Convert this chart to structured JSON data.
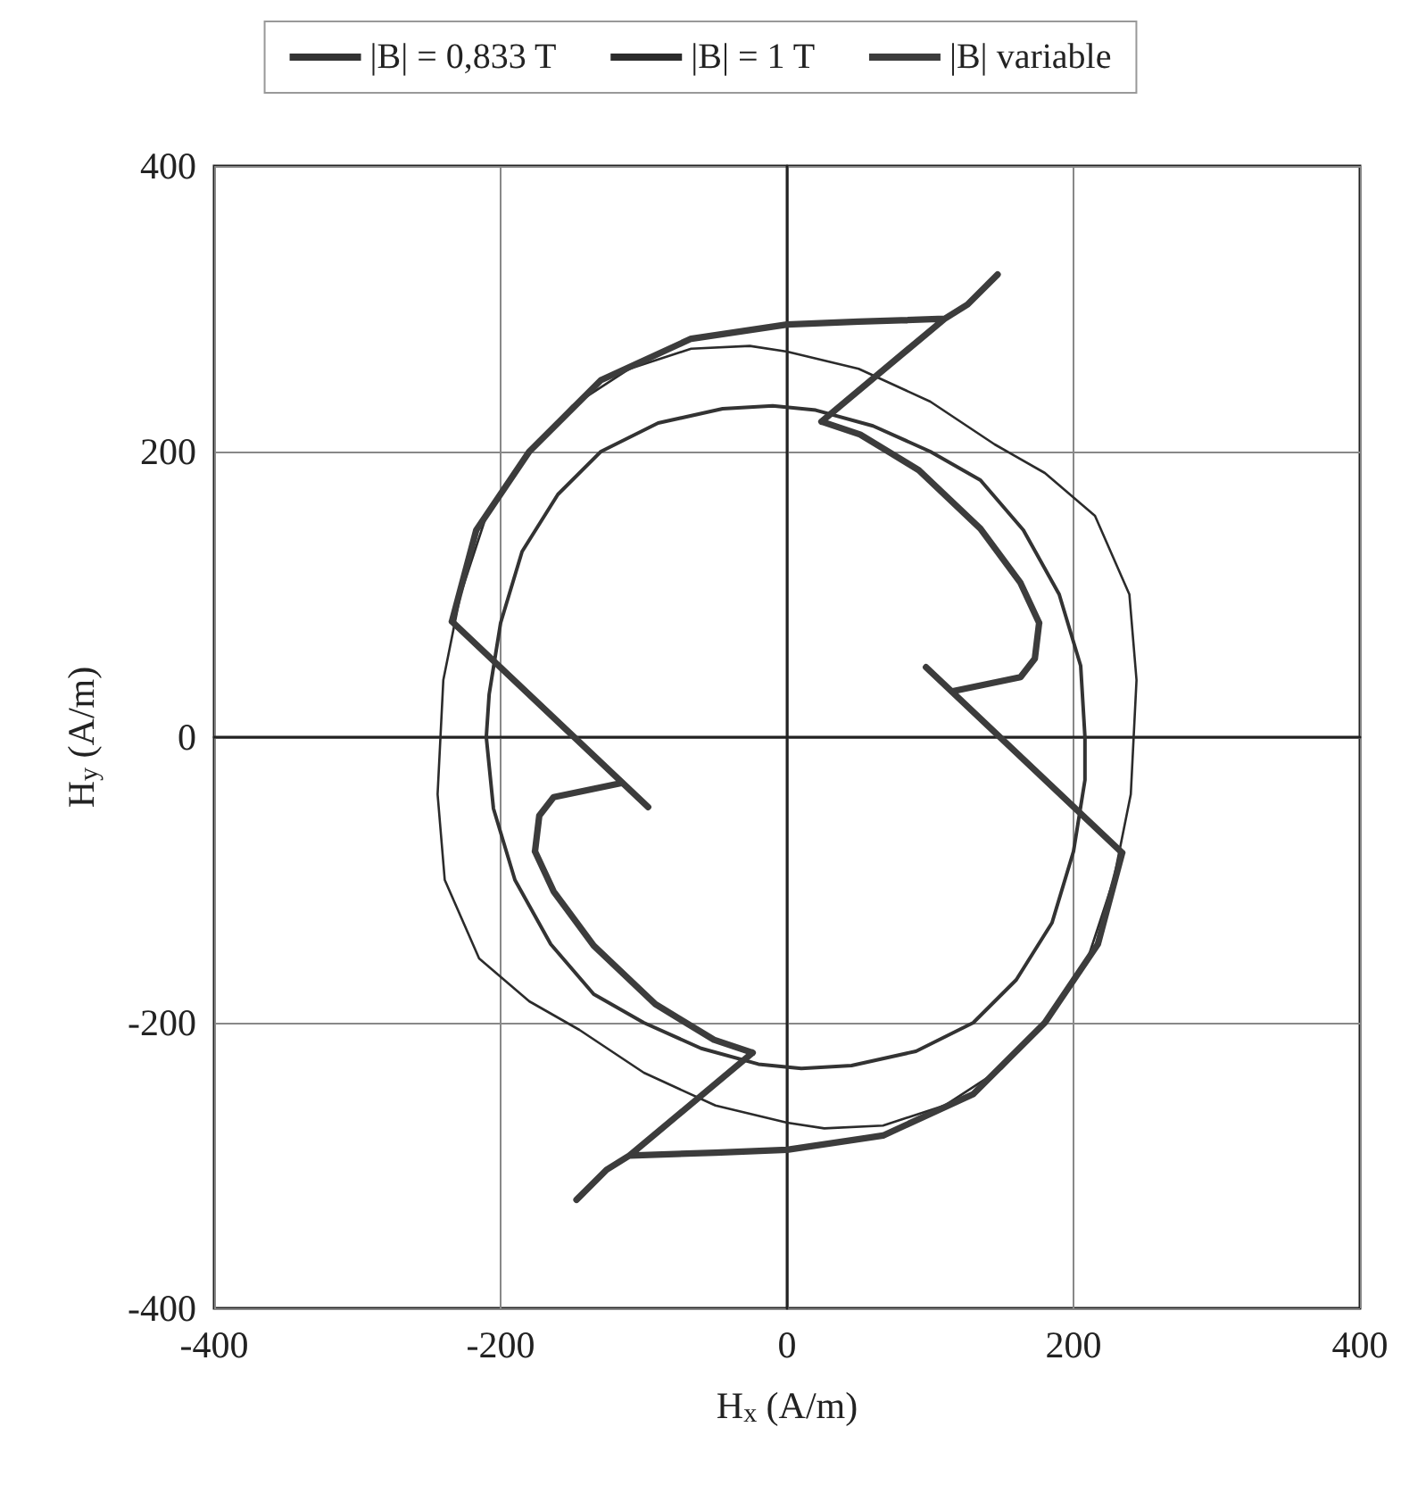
{
  "chart_data": {
    "type": "line",
    "xlabel": "H$_{x}$ (A/m)",
    "ylabel": "H$_{y}$ (A/m)",
    "xlim": [
      -400,
      400
    ],
    "xticks": [
      -400,
      -200,
      0,
      200,
      400
    ],
    "ylim": [
      -400,
      400
    ],
    "yticks": [
      -400,
      -200,
      0,
      200,
      400
    ],
    "grid": true,
    "legend": "top",
    "marker": "none",
    "line_style": "solid",
    "series": [
      {
        "name": "|B| = 0,833 T",
        "color": "#333333",
        "x": [
          208,
          205,
          190,
          165,
          135,
          100,
          60,
          20,
          -10,
          -45,
          -90,
          -130,
          -160,
          -185,
          -200,
          -208,
          -210,
          null,
          -210,
          -205,
          -190,
          -165,
          -135,
          -100,
          -60,
          -20,
          10,
          45,
          90,
          130,
          160,
          185,
          200,
          208,
          208
        ],
        "values": [
          0,
          50,
          100,
          145,
          180,
          200,
          218,
          229,
          232,
          230,
          220,
          200,
          170,
          130,
          80,
          30,
          0,
          null,
          0,
          -50,
          -100,
          -145,
          -180,
          -200,
          -218,
          -229,
          -232,
          -230,
          -220,
          -200,
          -170,
          -130,
          -80,
          -30,
          0
        ]
      },
      {
        "name": "|B| = 1 T",
        "color": "#2b2b2b",
        "x": [
          244,
          239,
          215,
          180,
          145,
          100,
          50,
          0,
          -26,
          -67,
          -110,
          -150,
          -180,
          -210,
          -228,
          -240,
          -244,
          null,
          -244,
          -239,
          -215,
          -180,
          -145,
          -100,
          -50,
          0,
          26,
          67,
          110,
          150,
          180,
          210,
          228,
          240,
          244
        ],
        "values": [
          40,
          100,
          155,
          185,
          205,
          235,
          258,
          270,
          274,
          272,
          258,
          232,
          200,
          155,
          100,
          40,
          -40,
          null,
          -40,
          -100,
          -155,
          -185,
          -205,
          -235,
          -258,
          -270,
          -274,
          -272,
          -258,
          -232,
          -200,
          -155,
          -100,
          -40,
          40
        ]
      },
      {
        "name": "|B| variable",
        "color": "#3c3c3c",
        "x": [
          147,
          126,
          110,
          50,
          0,
          -67,
          -130,
          -180,
          -217,
          -234,
          null,
          -234,
          -97,
          null,
          -115,
          -163,
          -173,
          -176,
          null,
          -176,
          -163,
          -135,
          -92,
          -51,
          -24,
          null,
          -24,
          -110,
          -126,
          -147,
          null,
          -110,
          -50,
          0,
          67,
          130,
          180,
          217,
          234,
          null,
          234,
          97,
          null,
          115,
          163,
          173,
          176,
          null,
          176,
          163,
          135,
          92,
          51,
          24,
          null,
          24,
          110
        ],
        "values": [
          324,
          303,
          293,
          291,
          289,
          279,
          250,
          200,
          145,
          81,
          null,
          81,
          -49,
          null,
          -32,
          -42,
          -55,
          -80,
          null,
          -80,
          -108,
          -146,
          -187,
          -212,
          -221,
          null,
          -221,
          -293,
          -303,
          -324,
          null,
          -293,
          -291,
          -289,
          -279,
          -250,
          -200,
          -145,
          -81,
          null,
          -81,
          49,
          null,
          32,
          42,
          55,
          80,
          null,
          80,
          108,
          146,
          187,
          212,
          221,
          null,
          221,
          293
        ]
      }
    ]
  }
}
